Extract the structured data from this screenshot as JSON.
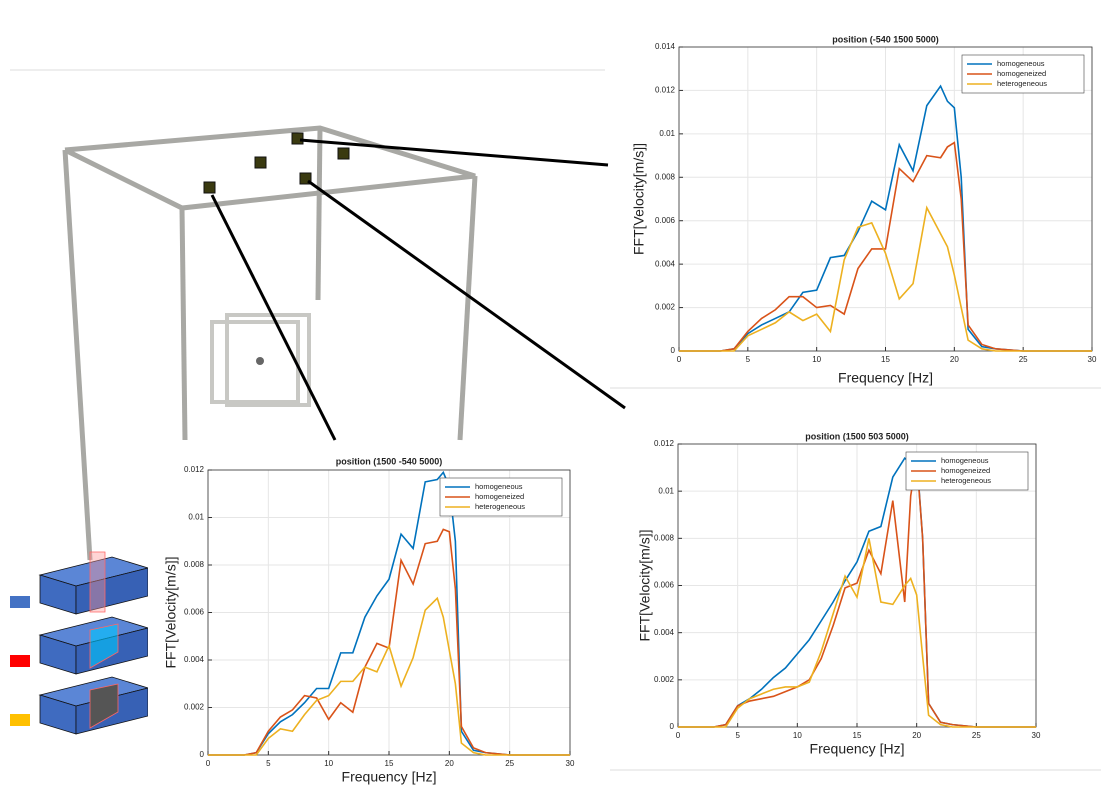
{
  "chart_data": [
    {
      "type": "line",
      "title": "position (-540 1500 5000)",
      "xlabel": "Frequency [Hz]",
      "ylabel": "FFT[Velocity[m/s]]",
      "x": [
        0,
        2,
        3,
        4,
        5,
        6,
        7,
        8,
        9,
        10,
        11,
        12,
        13,
        14,
        15,
        16,
        17,
        18,
        19,
        19.5,
        20,
        20.5,
        21,
        22,
        23,
        25,
        30
      ],
      "series": [
        {
          "name": "homogeneous",
          "color": "#0072bd",
          "values": [
            0,
            0,
            0,
            0.0001,
            0.0008,
            0.0012,
            0.0015,
            0.0018,
            0.0027,
            0.0028,
            0.0043,
            0.0044,
            0.0055,
            0.0069,
            0.0065,
            0.0095,
            0.0083,
            0.0113,
            0.0122,
            0.0115,
            0.0112,
            0.008,
            0.001,
            0.0002,
            0.0001,
            0,
            0
          ]
        },
        {
          "name": "homogeneized",
          "color": "#d95319",
          "values": [
            0,
            0,
            0,
            0.0001,
            0.0009,
            0.0015,
            0.0019,
            0.0025,
            0.0025,
            0.002,
            0.0021,
            0.0017,
            0.0038,
            0.0047,
            0.0047,
            0.0084,
            0.0078,
            0.009,
            0.0089,
            0.0094,
            0.0096,
            0.007,
            0.0012,
            0.0003,
            0.0001,
            0,
            0
          ]
        },
        {
          "name": "heterogeneous",
          "color": "#edb120",
          "values": [
            0,
            0,
            0,
            0,
            0.0007,
            0.001,
            0.0013,
            0.0018,
            0.0014,
            0.0017,
            0.0009,
            0.0042,
            0.0057,
            0.0059,
            0.0045,
            0.0024,
            0.0031,
            0.0066,
            0.0054,
            0.0048,
            0.0035,
            0.002,
            0.0005,
            0.0001,
            0,
            0,
            0
          ]
        }
      ],
      "xlim": [
        0,
        30
      ],
      "xticks": [
        0,
        5,
        10,
        15,
        20,
        25,
        30
      ],
      "ylim": [
        0,
        0.014
      ],
      "yticks": [
        0,
        0.002,
        0.004,
        0.006,
        0.008,
        0.01,
        0.012,
        0.014
      ],
      "grid": true,
      "legend": "northeast"
    },
    {
      "type": "line",
      "title": "position (1500 -540 5000)",
      "xlabel": "Frequency [Hz]",
      "ylabel": "FFT[Velocity[m/s]]",
      "x": [
        0,
        2,
        3,
        4,
        5,
        6,
        7,
        8,
        9,
        10,
        11,
        12,
        13,
        14,
        15,
        16,
        17,
        18,
        19,
        19.5,
        20,
        20.5,
        21,
        22,
        23,
        25,
        30
      ],
      "series": [
        {
          "name": "homogeneous",
          "color": "#0072bd",
          "values": [
            0,
            0,
            0,
            0.0001,
            0.0009,
            0.0014,
            0.0017,
            0.0022,
            0.0028,
            0.0028,
            0.0043,
            0.0043,
            0.0058,
            0.0067,
            0.0074,
            0.0093,
            0.0087,
            0.0115,
            0.0116,
            0.0119,
            0.0113,
            0.009,
            0.001,
            0.0002,
            0.0001,
            0,
            0
          ]
        },
        {
          "name": "homogeneized",
          "color": "#d95319",
          "values": [
            0,
            0,
            0,
            0.0001,
            0.001,
            0.0016,
            0.0019,
            0.0025,
            0.0024,
            0.0015,
            0.0022,
            0.0018,
            0.0037,
            0.0047,
            0.0045,
            0.0082,
            0.0072,
            0.0089,
            0.009,
            0.0095,
            0.0094,
            0.007,
            0.0012,
            0.0003,
            0.0001,
            0,
            0
          ]
        },
        {
          "name": "heterogeneous",
          "color": "#edb120",
          "values": [
            0,
            0,
            0,
            0,
            0.0007,
            0.0011,
            0.001,
            0.0017,
            0.0023,
            0.0025,
            0.0031,
            0.0031,
            0.0037,
            0.0035,
            0.0046,
            0.0029,
            0.0041,
            0.0061,
            0.0066,
            0.0058,
            0.0044,
            0.003,
            0.0005,
            0.0001,
            0,
            0,
            0
          ]
        }
      ],
      "xlim": [
        0,
        30
      ],
      "xticks": [
        0,
        5,
        10,
        15,
        20,
        25,
        30
      ],
      "ylim": [
        0,
        0.012
      ],
      "yticks": [
        0,
        0.002,
        0.004,
        0.006,
        0.008,
        0.01,
        0.012
      ],
      "grid": true,
      "legend": "northeast"
    },
    {
      "type": "line",
      "title": "position (1500 503 5000)",
      "xlabel": "Frequency [Hz]",
      "ylabel": "FFT[Velocity[m/s]]",
      "x": [
        0,
        2,
        3,
        4,
        5,
        6,
        7,
        8,
        9,
        10,
        11,
        12,
        13,
        14,
        15,
        16,
        17,
        18,
        19,
        19.5,
        20,
        20.5,
        21,
        22,
        23,
        25,
        30
      ],
      "series": [
        {
          "name": "homogeneous",
          "color": "#0072bd",
          "values": [
            0,
            0,
            0,
            0.0001,
            0.0009,
            0.0012,
            0.0016,
            0.0021,
            0.0025,
            0.0031,
            0.0037,
            0.0045,
            0.0053,
            0.0062,
            0.007,
            0.0083,
            0.0085,
            0.0106,
            0.0114,
            0.0112,
            0.0115,
            0.008,
            0.001,
            0.0002,
            0.0001,
            0,
            0
          ]
        },
        {
          "name": "homogeneized",
          "color": "#d95319",
          "values": [
            0,
            0,
            0,
            0.0001,
            0.0009,
            0.0011,
            0.0012,
            0.0013,
            0.0015,
            0.0017,
            0.002,
            0.0029,
            0.0043,
            0.0059,
            0.0061,
            0.0075,
            0.0065,
            0.0096,
            0.0053,
            0.0098,
            0.0114,
            0.008,
            0.001,
            0.0002,
            0.0001,
            0,
            0
          ]
        },
        {
          "name": "heterogeneous",
          "color": "#edb120",
          "values": [
            0,
            0,
            0,
            0,
            0.0008,
            0.0012,
            0.0014,
            0.0016,
            0.0017,
            0.0017,
            0.0019,
            0.0032,
            0.0048,
            0.0064,
            0.0055,
            0.008,
            0.0053,
            0.0052,
            0.006,
            0.0063,
            0.0056,
            0.003,
            0.0005,
            0.0001,
            0,
            0,
            0
          ]
        }
      ],
      "xlim": [
        0,
        30
      ],
      "xticks": [
        0,
        5,
        10,
        15,
        20,
        25,
        30
      ],
      "ylim": [
        0,
        0.012
      ],
      "yticks": [
        0,
        0.002,
        0.004,
        0.006,
        0.008,
        0.01,
        0.012
      ],
      "grid": true,
      "legend": "northeast"
    }
  ]
}
